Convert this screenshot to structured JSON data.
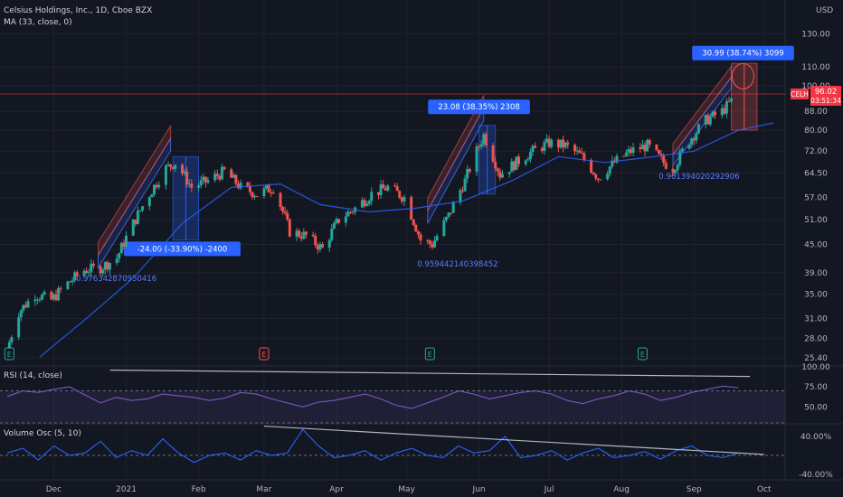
{
  "header": {
    "title": "Celsius Holdings, Inc., 1D, Cboe BZX",
    "ma_label": "MA (33, close, 0)",
    "currency": "USD"
  },
  "colors": {
    "background": "#131722",
    "up": "#26a69a",
    "down": "#ef5350",
    "ma": "#2962ff",
    "rsi": "#7e57c2",
    "vol": "#2962ff",
    "badge": "#2962ff",
    "price_tag": "#f23645"
  },
  "chart_data": [
    {
      "type": "candlestick",
      "panel": "price",
      "title": "Celsius Holdings, Inc., 1D, Cboe BZX",
      "x_ticks": [
        "Dec",
        "2021",
        "Feb",
        "Mar",
        "Apr",
        "May",
        "Jun",
        "Jul",
        "Aug",
        "Sep",
        "Oct"
      ],
      "y_ticks": [
        "130.00",
        "110.00",
        "100.00",
        "88.00",
        "80.00",
        "72.00",
        "64.50",
        "57.00",
        "51.00",
        "45.00",
        "39.00",
        "35.00",
        "31.00",
        "28.00",
        "25.40"
      ],
      "y_scale": "log",
      "ylim": [
        24.5,
        150
      ],
      "series_points": [
        [
          "2020-11-12",
          27.5
        ],
        [
          "2020-11-16",
          32.0
        ],
        [
          "2020-11-23",
          35.0
        ],
        [
          "2020-11-30",
          34.0
        ],
        [
          "2020-12-07",
          37.0
        ],
        [
          "2020-12-14",
          39.5
        ],
        [
          "2020-12-21",
          40.0
        ],
        [
          "2020-12-28",
          42.0
        ],
        [
          "2021-01-04",
          50.0
        ],
        [
          "2021-01-11",
          58.0
        ],
        [
          "2021-01-18",
          66.0
        ],
        [
          "2021-01-22",
          68.0
        ],
        [
          "2021-01-29",
          60.0
        ],
        [
          "2021-02-05",
          62.0
        ],
        [
          "2021-02-12",
          65.0
        ],
        [
          "2021-02-19",
          60.0
        ],
        [
          "2021-02-26",
          58.0
        ],
        [
          "2021-03-05",
          60.0
        ],
        [
          "2021-03-12",
          48.0
        ],
        [
          "2021-03-19",
          47.0
        ],
        [
          "2021-03-26",
          44.0
        ],
        [
          "2021-04-02",
          51.0
        ],
        [
          "2021-04-09",
          54.0
        ],
        [
          "2021-04-16",
          58.0
        ],
        [
          "2021-04-23",
          60.0
        ],
        [
          "2021-04-30",
          57.0
        ],
        [
          "2021-05-07",
          46.0
        ],
        [
          "2021-05-12",
          45.0
        ],
        [
          "2021-05-19",
          52.0
        ],
        [
          "2021-05-26",
          62.0
        ],
        [
          "2021-06-03",
          78.0
        ],
        [
          "2021-06-10",
          64.0
        ],
        [
          "2021-06-17",
          68.0
        ],
        [
          "2021-06-24",
          72.0
        ],
        [
          "2021-07-01",
          75.0
        ],
        [
          "2021-07-08",
          74.0
        ],
        [
          "2021-07-15",
          70.0
        ],
        [
          "2021-07-22",
          63.0
        ],
        [
          "2021-07-29",
          68.0
        ],
        [
          "2021-08-05",
          72.0
        ],
        [
          "2021-08-12",
          74.0
        ],
        [
          "2021-08-19",
          68.0
        ],
        [
          "2021-08-23",
          66.0
        ],
        [
          "2021-08-30",
          76.0
        ],
        [
          "2021-09-06",
          84.0
        ],
        [
          "2021-09-13",
          88.0
        ],
        [
          "2021-09-20",
          96.02
        ]
      ],
      "ma_points": [
        [
          "2020-11-25",
          25.5
        ],
        [
          "2020-12-15",
          31.0
        ],
        [
          "2021-01-04",
          38.0
        ],
        [
          "2021-01-25",
          50.0
        ],
        [
          "2021-02-15",
          60.0
        ],
        [
          "2021-03-08",
          61.0
        ],
        [
          "2021-03-25",
          55.0
        ],
        [
          "2021-04-15",
          53.0
        ],
        [
          "2021-05-05",
          54.0
        ],
        [
          "2021-05-25",
          56.0
        ],
        [
          "2021-06-15",
          62.0
        ],
        [
          "2021-07-05",
          70.0
        ],
        [
          "2021-07-25",
          68.0
        ],
        [
          "2021-08-15",
          70.0
        ],
        [
          "2021-09-01",
          72.0
        ],
        [
          "2021-09-20",
          80.0
        ],
        [
          "2021-10-05",
          83.0
        ]
      ],
      "last_price": "96.02",
      "last_tag": "CELH",
      "countdown": "03:51:34",
      "earnings_markers": [
        "2020-11-12",
        "2021-03-01",
        "2021-05-11",
        "2021-08-10"
      ],
      "annotations": [
        {
          "text": "-24.00 (-33.90%) -2400",
          "kind": "down-measure"
        },
        {
          "text": "23.08 (38.35%) 2308",
          "kind": "up-measure"
        },
        {
          "text": "30.99 (38.74%) 3099",
          "kind": "up-measure"
        },
        {
          "text": "0.976342870950416",
          "kind": "fib-label"
        },
        {
          "text": "0.959442140398452",
          "kind": "fib-label"
        },
        {
          "text": "0.961394020292906",
          "kind": "fib-label"
        }
      ]
    },
    {
      "type": "line",
      "panel": "rsi",
      "title": "RSI (14, close)",
      "y_ticks": [
        "100.00",
        "75.00",
        "50.00"
      ],
      "ylim": [
        30,
        100
      ],
      "band": [
        30,
        70
      ],
      "values": [
        63,
        70,
        68,
        72,
        75,
        65,
        55,
        62,
        58,
        60,
        66,
        64,
        62,
        58,
        61,
        68,
        66,
        60,
        55,
        50,
        56,
        58,
        62,
        66,
        60,
        52,
        48,
        55,
        62,
        70,
        66,
        60,
        64,
        68,
        70,
        66,
        58,
        54,
        60,
        64,
        70,
        66,
        58,
        62,
        68,
        72,
        76,
        74
      ]
    },
    {
      "type": "line",
      "panel": "volume_osc",
      "title": "Volume Osc (5, 10)",
      "y_ticks": [
        "40.00%",
        "-40.00%"
      ],
      "ylim": [
        -50,
        65
      ],
      "values": [
        5,
        15,
        -10,
        20,
        0,
        5,
        30,
        -5,
        10,
        0,
        35,
        5,
        -15,
        0,
        5,
        -10,
        10,
        0,
        5,
        55,
        20,
        -5,
        0,
        10,
        -10,
        5,
        15,
        0,
        -5,
        20,
        5,
        10,
        40,
        -5,
        0,
        10,
        -10,
        5,
        15,
        -5,
        0,
        8,
        -8,
        10,
        20,
        0,
        -5,
        5
      ]
    }
  ]
}
